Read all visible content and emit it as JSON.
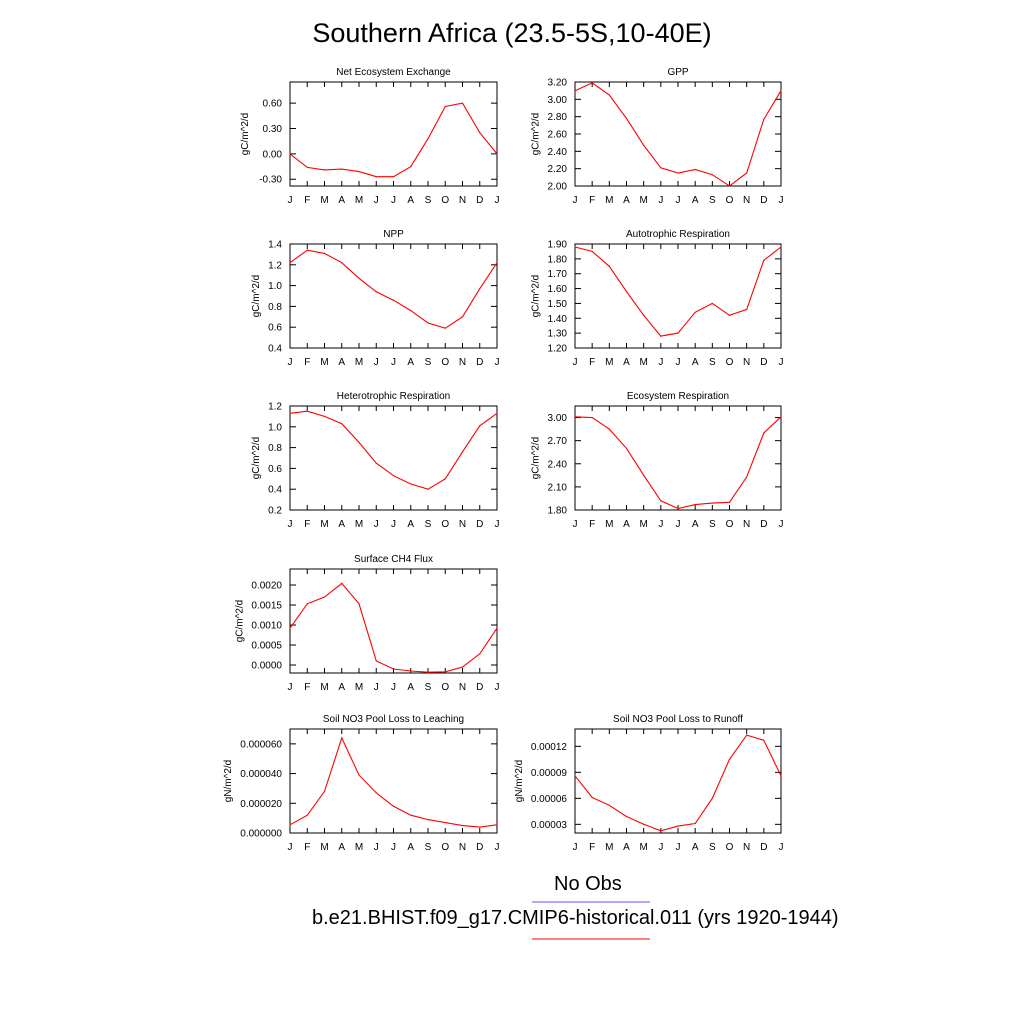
{
  "title": "Southern Africa (23.5-5S,10-40E)",
  "legend": [
    {
      "label": "No Obs",
      "color": "#5a5aff"
    },
    {
      "label": "b.e21.BHIST.f09_g17.CMIP6-historical.011 (yrs 1920-1944)",
      "color": "#ff0000"
    }
  ],
  "months": [
    "J",
    "F",
    "M",
    "A",
    "M",
    "J",
    "J",
    "A",
    "S",
    "O",
    "N",
    "D",
    "J"
  ],
  "line_color": "#ff0000",
  "chart_data": [
    {
      "type": "line",
      "title": "Net Ecosystem Exchange",
      "ylabel": "gC/m^2/d",
      "ylim": [
        -0.38,
        0.85
      ],
      "yticks": [
        "-0.30",
        "0.00",
        "0.30",
        "0.60"
      ],
      "ytick_values": [
        -0.3,
        0.0,
        0.3,
        0.6
      ],
      "values": [
        0.0,
        -0.16,
        -0.19,
        -0.18,
        -0.21,
        -0.27,
        -0.27,
        -0.15,
        0.18,
        0.56,
        0.6,
        0.25,
        0.0
      ]
    },
    {
      "type": "line",
      "title": "GPP",
      "ylabel": "gC/m^2/d",
      "ylim": [
        2.0,
        3.2
      ],
      "yticks": [
        "2.00",
        "2.20",
        "2.40",
        "2.60",
        "2.80",
        "3.00",
        "3.20"
      ],
      "ytick_values": [
        2.0,
        2.2,
        2.4,
        2.6,
        2.8,
        3.0,
        3.2
      ],
      "values": [
        3.1,
        3.19,
        3.05,
        2.78,
        2.47,
        2.21,
        2.15,
        2.19,
        2.13,
        2.0,
        2.15,
        2.77,
        3.1
      ]
    },
    {
      "type": "line",
      "title": "NPP",
      "ylabel": "gC/m^2/d",
      "ylim": [
        0.4,
        1.4
      ],
      "yticks": [
        "0.4",
        "0.6",
        "0.8",
        "1.0",
        "1.2",
        "1.4"
      ],
      "ytick_values": [
        0.4,
        0.6,
        0.8,
        1.0,
        1.2,
        1.4
      ],
      "values": [
        1.22,
        1.34,
        1.31,
        1.22,
        1.07,
        0.94,
        0.86,
        0.76,
        0.64,
        0.59,
        0.7,
        0.97,
        1.22
      ]
    },
    {
      "type": "line",
      "title": "Autotrophic Respiration",
      "ylabel": "gC/m^2/d",
      "ylim": [
        1.2,
        1.9
      ],
      "yticks": [
        "1.20",
        "1.30",
        "1.40",
        "1.50",
        "1.60",
        "1.70",
        "1.80",
        "1.90"
      ],
      "ytick_values": [
        1.2,
        1.3,
        1.4,
        1.5,
        1.6,
        1.7,
        1.8,
        1.9
      ],
      "values": [
        1.88,
        1.85,
        1.75,
        1.58,
        1.42,
        1.28,
        1.3,
        1.44,
        1.5,
        1.42,
        1.46,
        1.79,
        1.88
      ]
    },
    {
      "type": "line",
      "title": "Heterotrophic Respiration",
      "ylabel": "gC/m^2/d",
      "ylim": [
        0.2,
        1.2
      ],
      "yticks": [
        "0.2",
        "0.4",
        "0.6",
        "0.8",
        "1.0",
        "1.2"
      ],
      "ytick_values": [
        0.2,
        0.4,
        0.6,
        0.8,
        1.0,
        1.2
      ],
      "values": [
        1.13,
        1.15,
        1.1,
        1.03,
        0.85,
        0.65,
        0.53,
        0.45,
        0.4,
        0.5,
        0.76,
        1.01,
        1.13
      ]
    },
    {
      "type": "line",
      "title": "Ecosystem Respiration",
      "ylabel": "gC/m^2/d",
      "ylim": [
        1.8,
        3.15
      ],
      "yticks": [
        "1.80",
        "2.10",
        "2.40",
        "2.70",
        "3.00"
      ],
      "ytick_values": [
        1.8,
        2.1,
        2.4,
        2.7,
        3.0
      ],
      "values": [
        3.01,
        3.0,
        2.85,
        2.6,
        2.25,
        1.92,
        1.82,
        1.87,
        1.89,
        1.9,
        2.23,
        2.8,
        3.01
      ]
    },
    {
      "type": "line",
      "title": "Surface CH4 Flux",
      "ylabel": "gC/m^2/d",
      "ylim": [
        -0.0002,
        0.0024
      ],
      "yticks": [
        "0.0000",
        "0.0005",
        "0.0010",
        "0.0015",
        "0.0020"
      ],
      "ytick_values": [
        0,
        0.0005,
        0.001,
        0.0015,
        0.002
      ],
      "values": [
        0.00092,
        0.00153,
        0.0017,
        0.00204,
        0.00153,
        0.0001,
        -0.0001,
        -0.00015,
        -0.00018,
        -0.00017,
        -5e-05,
        0.00028,
        0.00092
      ]
    },
    {
      "type": "line",
      "title": "Soil NO3 Pool Loss to Leaching",
      "ylabel": "gN/m^2/d",
      "ylim": [
        0.0,
        7e-05
      ],
      "yticks": [
        "0.000000",
        "0.000020",
        "0.000040",
        "0.000060"
      ],
      "ytick_values": [
        0,
        2e-05,
        4e-05,
        6e-05
      ],
      "values": [
        5.5e-06,
        1.2e-05,
        2.8e-05,
        6.4e-05,
        3.9e-05,
        2.7e-05,
        1.8e-05,
        1.2e-05,
        9e-06,
        7e-06,
        5e-06,
        4e-06,
        5.5e-06
      ]
    },
    {
      "type": "line",
      "title": "Soil NO3 Pool Loss to Runoff",
      "ylabel": "gN/m^2/d",
      "ylim": [
        2e-05,
        0.00014
      ],
      "yticks": [
        "0.00003",
        "0.00006",
        "0.00009",
        "0.00012"
      ],
      "ytick_values": [
        3e-05,
        6e-05,
        9e-05,
        0.00012
      ],
      "values": [
        8.6e-05,
        6.1e-05,
        5.2e-05,
        3.9e-05,
        3e-05,
        2.25e-05,
        2.8e-05,
        3.1e-05,
        6e-05,
        0.000105,
        0.000133,
        0.000127,
        8.6e-05
      ]
    }
  ]
}
